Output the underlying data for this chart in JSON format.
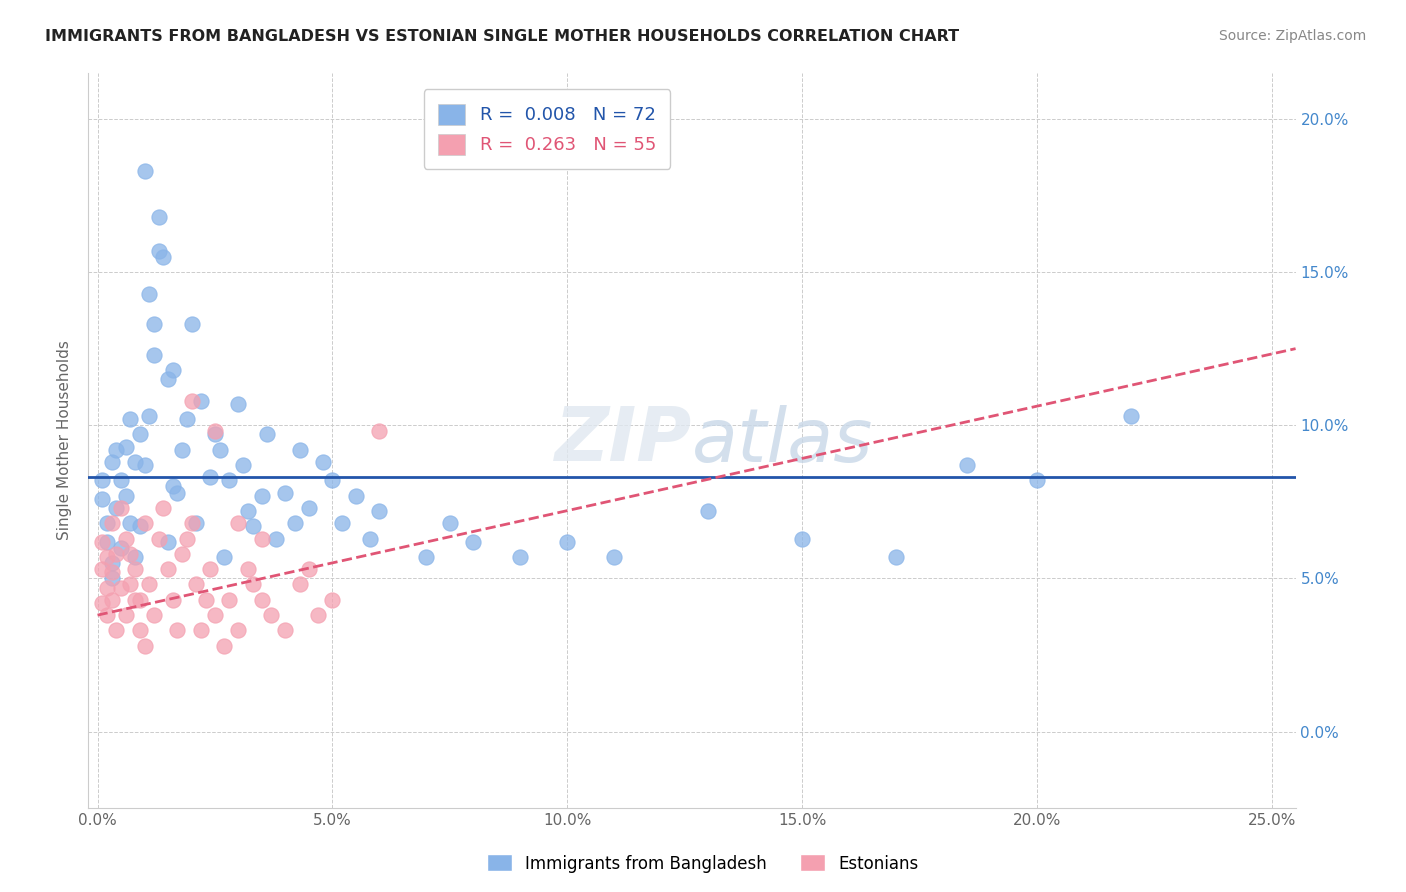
{
  "title": "IMMIGRANTS FROM BANGLADESH VS ESTONIAN SINGLE MOTHER HOUSEHOLDS CORRELATION CHART",
  "source": "Source: ZipAtlas.com",
  "xlabel_vals": [
    0.0,
    0.05,
    0.1,
    0.15,
    0.2,
    0.25
  ],
  "ylabel_vals": [
    0.0,
    0.05,
    0.1,
    0.15,
    0.2
  ],
  "xlim": [
    -0.002,
    0.255
  ],
  "ylim": [
    -0.025,
    0.215
  ],
  "series1_color": "#89b4e8",
  "series2_color": "#f4a0b0",
  "trendline1_color": "#2255aa",
  "trendline2_color": "#e05575",
  "trendline2_dashed": true,
  "watermark": "ZIPatlas",
  "ylabel": "Single Mother Households",
  "legend_r1": "R =  0.008   N = 72",
  "legend_r2": "R =  0.263   N = 55",
  "legend_label1": "Immigrants from Bangladesh",
  "legend_label2": "Estonians",
  "bangladesh_x": [
    0.001,
    0.001,
    0.002,
    0.002,
    0.003,
    0.003,
    0.003,
    0.004,
    0.004,
    0.005,
    0.005,
    0.006,
    0.006,
    0.007,
    0.007,
    0.008,
    0.008,
    0.009,
    0.009,
    0.01,
    0.01,
    0.011,
    0.011,
    0.012,
    0.012,
    0.013,
    0.013,
    0.014,
    0.015,
    0.015,
    0.016,
    0.016,
    0.017,
    0.018,
    0.019,
    0.02,
    0.021,
    0.022,
    0.024,
    0.025,
    0.026,
    0.027,
    0.028,
    0.03,
    0.031,
    0.032,
    0.033,
    0.035,
    0.036,
    0.038,
    0.04,
    0.042,
    0.043,
    0.045,
    0.048,
    0.05,
    0.052,
    0.055,
    0.058,
    0.06,
    0.07,
    0.075,
    0.08,
    0.09,
    0.1,
    0.11,
    0.13,
    0.15,
    0.17,
    0.185,
    0.2,
    0.22
  ],
  "bangladesh_y": [
    0.082,
    0.076,
    0.062,
    0.068,
    0.055,
    0.05,
    0.088,
    0.073,
    0.092,
    0.06,
    0.082,
    0.077,
    0.093,
    0.068,
    0.102,
    0.057,
    0.088,
    0.097,
    0.067,
    0.087,
    0.183,
    0.143,
    0.103,
    0.123,
    0.133,
    0.157,
    0.168,
    0.155,
    0.115,
    0.062,
    0.118,
    0.08,
    0.078,
    0.092,
    0.102,
    0.133,
    0.068,
    0.108,
    0.083,
    0.097,
    0.092,
    0.057,
    0.082,
    0.107,
    0.087,
    0.072,
    0.067,
    0.077,
    0.097,
    0.063,
    0.078,
    0.068,
    0.092,
    0.073,
    0.088,
    0.082,
    0.068,
    0.077,
    0.063,
    0.072,
    0.057,
    0.068,
    0.062,
    0.057,
    0.062,
    0.057,
    0.072,
    0.063,
    0.057,
    0.087,
    0.082,
    0.103
  ],
  "estonian_x": [
    0.001,
    0.001,
    0.001,
    0.002,
    0.002,
    0.002,
    0.003,
    0.003,
    0.003,
    0.004,
    0.004,
    0.005,
    0.005,
    0.006,
    0.006,
    0.007,
    0.007,
    0.008,
    0.008,
    0.009,
    0.009,
    0.01,
    0.01,
    0.011,
    0.012,
    0.013,
    0.014,
    0.015,
    0.016,
    0.017,
    0.018,
    0.019,
    0.02,
    0.021,
    0.022,
    0.023,
    0.024,
    0.025,
    0.027,
    0.028,
    0.03,
    0.032,
    0.033,
    0.035,
    0.037,
    0.04,
    0.043,
    0.045,
    0.047,
    0.05,
    0.02,
    0.025,
    0.03,
    0.035,
    0.06
  ],
  "estonian_y": [
    0.042,
    0.053,
    0.062,
    0.047,
    0.057,
    0.038,
    0.052,
    0.043,
    0.068,
    0.033,
    0.058,
    0.047,
    0.073,
    0.038,
    0.063,
    0.048,
    0.058,
    0.043,
    0.053,
    0.033,
    0.043,
    0.028,
    0.068,
    0.048,
    0.038,
    0.063,
    0.073,
    0.053,
    0.043,
    0.033,
    0.058,
    0.063,
    0.068,
    0.048,
    0.033,
    0.043,
    0.053,
    0.038,
    0.028,
    0.043,
    0.033,
    0.053,
    0.048,
    0.043,
    0.038,
    0.033,
    0.048,
    0.053,
    0.038,
    0.043,
    0.108,
    0.098,
    0.068,
    0.063,
    0.098
  ],
  "trendline1_y_start": 0.083,
  "trendline1_y_end": 0.083,
  "trendline2_x_start": 0.0,
  "trendline2_x_end": 0.255,
  "trendline2_y_start": 0.038,
  "trendline2_y_end": 0.125
}
